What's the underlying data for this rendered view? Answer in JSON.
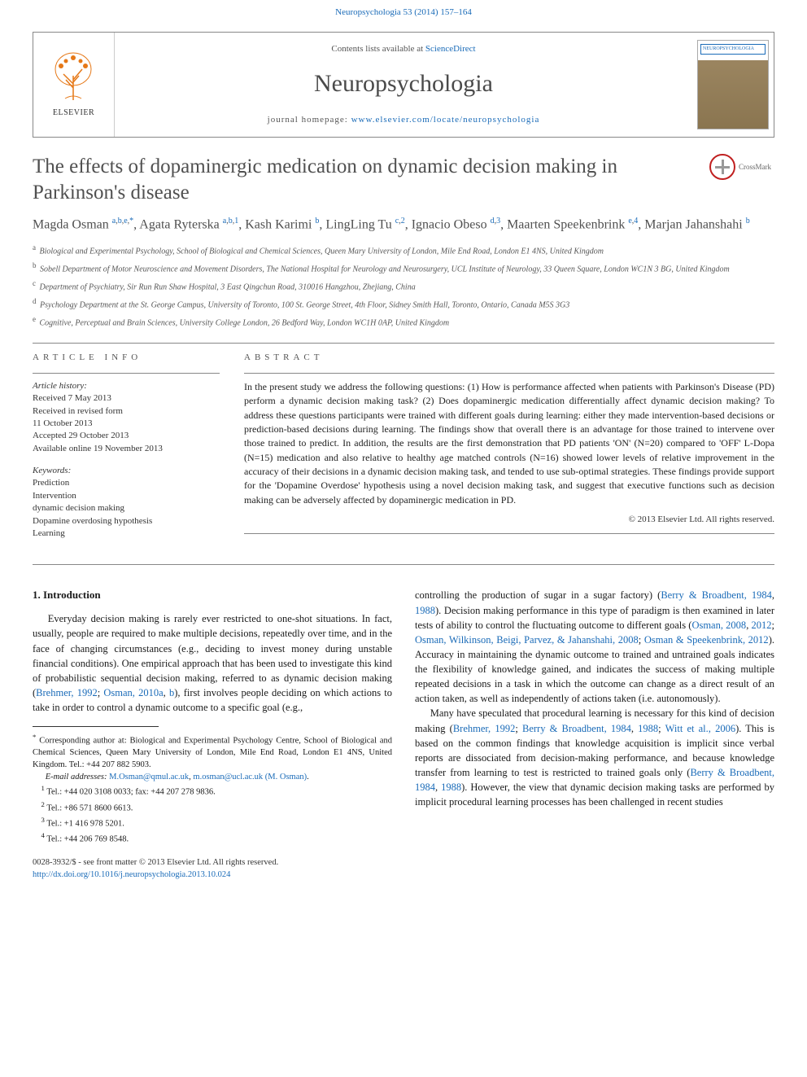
{
  "journal_link_top": "Neuropsychologia 53 (2014) 157–164",
  "header": {
    "contents_prefix": "Contents lists available at ",
    "contents_link": "ScienceDirect",
    "journal_name": "Neuropsychologia",
    "homepage_prefix": "journal homepage: ",
    "homepage_url": "www.elsevier.com/locate/neuropsychologia",
    "elsevier_label": "ELSEVIER",
    "cover_label": "NEUROPSYCHOLOGIA"
  },
  "crossmark_label": "CrossMark",
  "title": "The effects of dopaminergic medication on dynamic decision making in Parkinson's disease",
  "authors_html": "Magda Osman <sup><a>a</a>,<a>b</a>,<a>e</a>,<a>*</a></sup>, Agata Ryterska <sup><a>a</a>,<a>b</a>,<a>1</a></sup>, Kash Karimi <sup><a>b</a></sup>, LingLing Tu <sup><a>c</a>,<a>2</a></sup>, Ignacio Obeso <sup><a>d</a>,<a>3</a></sup>, Maarten Speekenbrink <sup><a>e</a>,<a>4</a></sup>, Marjan Jahanshahi <sup><a>b</a></sup>",
  "affiliations": [
    {
      "sup": "a",
      "text": "Biological and Experimental Psychology, School of Biological and Chemical Sciences, Queen Mary University of London, Mile End Road, London E1 4NS, United Kingdom"
    },
    {
      "sup": "b",
      "text": "Sobell Department of Motor Neuroscience and Movement Disorders, The National Hospital for Neurology and Neurosurgery, UCL Institute of Neurology, 33 Queen Square, London WC1N 3 BG, United Kingdom"
    },
    {
      "sup": "c",
      "text": "Department of Psychiatry, Sir Run Run Shaw Hospital, 3 East Qingchun Road, 310016 Hangzhou, Zhejiang, China"
    },
    {
      "sup": "d",
      "text": "Psychology Department at the St. George Campus, University of Toronto, 100 St. George Street, 4th Floor, Sidney Smith Hall, Toronto, Ontario, Canada M5S 3G3"
    },
    {
      "sup": "e",
      "text": "Cognitive, Perceptual and Brain Sciences, University College London, 26 Bedford Way, London WC1H 0AP, United Kingdom"
    }
  ],
  "info": {
    "heading": "article info",
    "history_label": "Article history:",
    "history": [
      "Received 7 May 2013",
      "Received in revised form",
      "11 October 2013",
      "Accepted 29 October 2013",
      "Available online 19 November 2013"
    ],
    "keywords_label": "Keywords:",
    "keywords": [
      "Prediction",
      "Intervention",
      "dynamic decision making",
      "Dopamine overdosing hypothesis",
      "Learning"
    ]
  },
  "abstract": {
    "heading": "abstract",
    "text": "In the present study we address the following questions: (1) How is performance affected when patients with Parkinson's Disease (PD) perform a dynamic decision making task? (2) Does dopaminergic medication differentially affect dynamic decision making? To address these questions participants were trained with different goals during learning: either they made intervention-based decisions or prediction-based decisions during learning. The findings show that overall there is an advantage for those trained to intervene over those trained to predict. In addition, the results are the first demonstration that PD patients 'ON' (N=20) compared to 'OFF' L-Dopa (N=15) medication and also relative to healthy age matched controls (N=16) showed lower levels of relative improvement in the accuracy of their decisions in a dynamic decision making task, and tended to use sub-optimal strategies. These findings provide support for the 'Dopamine Overdose' hypothesis using a novel decision making task, and suggest that executive functions such as decision making can be adversely affected by dopaminergic medication in PD.",
    "copyright": "© 2013 Elsevier Ltd. All rights reserved."
  },
  "intro": {
    "heading": "1.  Introduction",
    "p1_a": "Everyday decision making is rarely ever restricted to one-shot situations. In fact, usually, people are required to make multiple decisions, repeatedly over time, and in the face of changing circumstances (e.g., deciding to invest money during unstable financial conditions). One empirical approach that has been used to investigate this kind of probabilistic sequential decision making, referred to as dynamic decision making (",
    "p1_link1": "Brehmer, 1992",
    "p1_b": "; ",
    "p1_link2": "Osman, 2010a",
    "p1_c": ", ",
    "p1_link3": "b",
    "p1_d": "), first involves people deciding on which actions to take in order to control a dynamic outcome to a specific goal (e.g., ",
    "p1_e": "controlling the production of sugar in a sugar factory) (",
    "p1_link4": "Berry & Broadbent, 1984",
    "p1_f": ", ",
    "p1_link5": "1988",
    "p1_g": "). Decision making performance in this type of paradigm is then examined in later tests of ability to control the fluctuating outcome to different goals (",
    "p1_link6": "Osman, 2008",
    "p1_h": ", ",
    "p1_link7": "2012",
    "p1_i": "; ",
    "p1_link8": "Osman, Wilkinson, Beigi, Parvez, & Jahanshahi, 2008",
    "p1_j": "; ",
    "p1_link9": "Osman & Speekenbrink, 2012",
    "p1_k": "). Accuracy in maintaining the dynamic outcome to trained and untrained goals indicates the flexibility of knowledge gained, and indicates the success of making multiple repeated decisions in a task in which the outcome can change as a direct result of an action taken, as well as independently of actions taken (i.e. autonomously).",
    "p2_a": "Many have speculated that procedural learning is necessary for this kind of decision making (",
    "p2_link1": "Brehmer, 1992",
    "p2_b": "; ",
    "p2_link2": "Berry & Broadbent, 1984",
    "p2_c": ", ",
    "p2_link3": "1988",
    "p2_d": "; ",
    "p2_link4": "Witt et al., 2006",
    "p2_e": "). This is based on the common findings that knowledge acquisition is implicit since verbal reports are dissociated from decision-making performance, and because knowledge transfer from learning to test is restricted to trained goals only (",
    "p2_link5": "Berry & Broadbent, 1984",
    "p2_f": ", ",
    "p2_link6": "1988",
    "p2_g": "). However, the view that dynamic decision making tasks are performed by implicit procedural learning processes has been challenged in recent studies"
  },
  "footnotes": {
    "corr_sym": "*",
    "corr": "Corresponding author at: Biological and Experimental Psychology Centre, School of Biological and Chemical Sciences, Queen Mary University of London, Mile End Road, London E1 4NS, United Kingdom. Tel.: +44 207 882 5903.",
    "email_label": "E-mail addresses: ",
    "email1": "M.Osman@qmul.ac.uk",
    "email_sep": ", ",
    "email2": "m.osman@ucl.ac.uk (M. Osman)",
    "email_end": ".",
    "n1": "Tel.: +44 020 3108 0033; fax: +44 207 278 9836.",
    "n2": "Tel.: +86 571 8600 6613.",
    "n3": "Tel.: +1 416 978 5201.",
    "n4": "Tel.: +44 206 769 8548."
  },
  "footer": {
    "left_line1": "0028-3932/$ - see front matter © 2013 Elsevier Ltd. All rights reserved.",
    "left_doi": "http://dx.doi.org/10.1016/j.neuropsychologia.2013.10.024"
  },
  "colors": {
    "link": "#1a6bb8",
    "text": "#1a1a1a",
    "heading": "#505050",
    "rule": "#888888"
  }
}
